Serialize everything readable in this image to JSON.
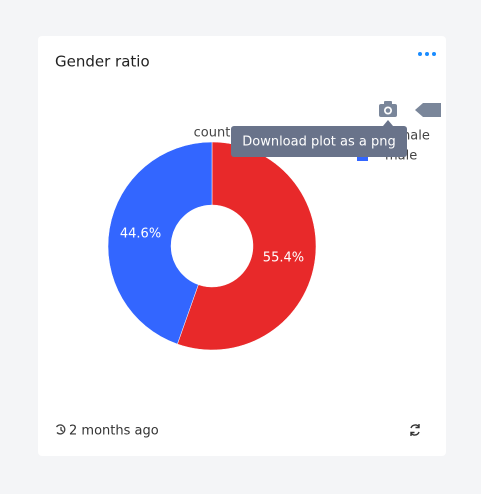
{
  "card": {
    "title": "Gender ratio",
    "footer": "2 months ago"
  },
  "tooltip": "Download plot as a png",
  "chart_data": {
    "type": "pie",
    "title": "count",
    "categories": [
      "female",
      "male"
    ],
    "values": [
      55.4,
      44.6
    ],
    "value_labels": [
      "55.4%",
      "44.6%"
    ],
    "colors": [
      "#e8292a",
      "#3366ff"
    ],
    "legend": "top-right"
  }
}
